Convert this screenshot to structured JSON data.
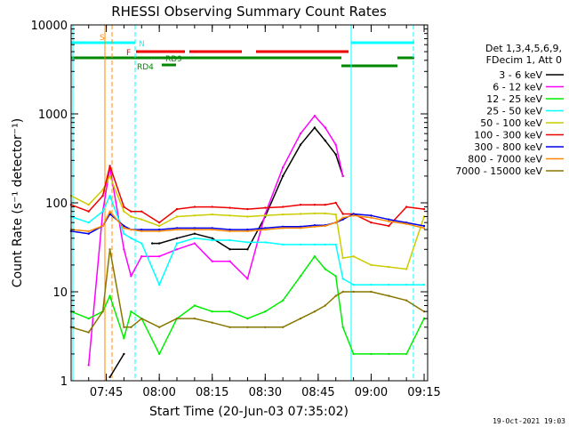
{
  "chart_data": {
    "type": "line",
    "title": "RHESSI Observing Summary Count Rates",
    "xlabel": "Start Time (20-Jun-03 07:35:02)",
    "ylabel": "Count Rate (s⁻¹ detector⁻¹)",
    "yscale": "log",
    "xlim": [
      "07:35:02",
      "09:16:00"
    ],
    "ylim": [
      1,
      10000
    ],
    "x_ticks": [
      "07:45",
      "08:00",
      "08:15",
      "08:30",
      "08:45",
      "09:00",
      "09:15"
    ],
    "y_ticks": [
      "1",
      "10",
      "100",
      "1000",
      "10000"
    ],
    "grid": false,
    "legend": {
      "placement": "right",
      "header": [
        "Det 1,3,4,5,6,9,",
        "FDecim 1, Att 0"
      ],
      "entries": [
        "3 - 6 keV",
        "6 - 12 keV",
        "12 - 25 keV",
        "25 - 50 keV",
        "50 - 100 keV",
        "100 - 300 keV",
        "300 - 800 keV",
        "800 - 7000 keV",
        "7000 - 15000 keV"
      ]
    },
    "series": [
      {
        "name": "3 - 6 keV",
        "color": "#000000",
        "x": [
          "07:35",
          "07:40",
          "07:44",
          "07:46",
          "07:50",
          "07:52",
          "07:55",
          "07:58",
          "08:00",
          "08:05",
          "08:10",
          "08:15",
          "08:20",
          "08:25",
          "08:30",
          "08:35",
          "08:40",
          "08:44",
          "08:47",
          "08:50",
          "08:52",
          "08:55",
          "08:56",
          "09:00",
          "09:10",
          "09:15"
        ],
        "y": [
          null,
          null,
          null,
          1.1,
          2,
          null,
          null,
          35,
          35,
          40,
          45,
          40,
          30,
          30,
          70,
          200,
          450,
          700,
          500,
          350,
          200,
          null,
          null,
          null,
          null,
          null
        ]
      },
      {
        "name": "6 - 12 keV",
        "color": "#ff00ff",
        "x": [
          "07:35",
          "07:40",
          "07:44",
          "07:46",
          "07:50",
          "07:52",
          "07:55",
          "08:00",
          "08:05",
          "08:10",
          "08:15",
          "08:20",
          "08:25",
          "08:30",
          "08:35",
          "08:40",
          "08:44",
          "08:47",
          "08:50",
          "08:52",
          "08:55",
          "09:00",
          "09:15"
        ],
        "y": [
          null,
          1.5,
          80,
          250,
          30,
          15,
          25,
          25,
          30,
          35,
          22,
          22,
          14,
          75,
          250,
          600,
          950,
          700,
          450,
          200,
          null,
          null,
          null
        ]
      },
      {
        "name": "12 - 25 keV",
        "color": "#00ee00",
        "x": [
          "07:35",
          "07:40",
          "07:44",
          "07:46",
          "07:50",
          "07:52",
          "07:55",
          "08:00",
          "08:05",
          "08:10",
          "08:15",
          "08:20",
          "08:25",
          "08:30",
          "08:35",
          "08:40",
          "08:44",
          "08:47",
          "08:50",
          "08:52",
          "08:55",
          "09:00",
          "09:05",
          "09:10",
          "09:15"
        ],
        "y": [
          6,
          5,
          6,
          9,
          3,
          6,
          5,
          2,
          5,
          7,
          6,
          6,
          5,
          6,
          8,
          15,
          25,
          18,
          15,
          4,
          2,
          2,
          2,
          2,
          5
        ]
      },
      {
        "name": "25 - 50 keV",
        "color": "#00ffff",
        "x": [
          "07:35",
          "07:40",
          "07:44",
          "07:46",
          "07:50",
          "07:52",
          "07:55",
          "08:00",
          "08:05",
          "08:10",
          "08:15",
          "08:20",
          "08:25",
          "08:30",
          "08:35",
          "08:40",
          "08:44",
          "08:47",
          "08:50",
          "08:52",
          "08:55",
          "09:00",
          "09:05",
          "09:10",
          "09:15"
        ],
        "y": [
          70,
          60,
          80,
          120,
          45,
          40,
          35,
          12,
          35,
          40,
          38,
          38,
          36,
          36,
          34,
          34,
          34,
          34,
          34,
          14,
          12,
          12,
          12,
          12,
          12
        ]
      },
      {
        "name": "50 - 100 keV",
        "color": "#cccc00",
        "x": [
          "07:35",
          "07:40",
          "07:44",
          "07:46",
          "07:50",
          "07:52",
          "07:55",
          "08:00",
          "08:05",
          "08:10",
          "08:15",
          "08:20",
          "08:25",
          "08:30",
          "08:35",
          "08:40",
          "08:44",
          "08:47",
          "08:50",
          "08:52",
          "08:55",
          "09:00",
          "09:05",
          "09:10",
          "09:15"
        ],
        "y": [
          120,
          95,
          140,
          200,
          80,
          70,
          65,
          55,
          70,
          72,
          74,
          72,
          70,
          72,
          74,
          75,
          76,
          76,
          74,
          24,
          25,
          20,
          19,
          18,
          70
        ]
      },
      {
        "name": "100 - 300 keV",
        "color": "#ee0000",
        "x": [
          "07:35",
          "07:40",
          "07:44",
          "07:46",
          "07:50",
          "07:52",
          "07:55",
          "08:00",
          "08:05",
          "08:10",
          "08:15",
          "08:20",
          "08:25",
          "08:30",
          "08:35",
          "08:40",
          "08:44",
          "08:47",
          "08:50",
          "08:52",
          "08:55",
          "09:00",
          "09:05",
          "09:10",
          "09:15"
        ],
        "y": [
          95,
          80,
          120,
          260,
          90,
          80,
          80,
          60,
          85,
          90,
          90,
          88,
          85,
          88,
          90,
          95,
          95,
          95,
          100,
          75,
          75,
          60,
          55,
          90,
          85
        ]
      },
      {
        "name": "300 - 800 keV",
        "color": "#0000ee",
        "x": [
          "07:35",
          "07:40",
          "07:44",
          "07:46",
          "07:50",
          "07:52",
          "07:55",
          "08:00",
          "08:05",
          "08:10",
          "08:15",
          "08:20",
          "08:25",
          "08:30",
          "08:35",
          "08:40",
          "08:44",
          "08:47",
          "08:50",
          "08:52",
          "08:55",
          "09:00",
          "09:05",
          "09:10",
          "09:15"
        ],
        "y": [
          48,
          45,
          55,
          75,
          55,
          50,
          50,
          50,
          52,
          52,
          52,
          50,
          50,
          52,
          54,
          54,
          56,
          56,
          60,
          65,
          75,
          72,
          65,
          60,
          55
        ]
      },
      {
        "name": "800 - 7000 keV",
        "color": "#ff8800",
        "x": [
          "07:35",
          "07:40",
          "07:44",
          "07:46",
          "07:50",
          "07:52",
          "07:55",
          "08:00",
          "08:05",
          "08:10",
          "08:15",
          "08:20",
          "08:25",
          "08:30",
          "08:35",
          "08:40",
          "08:44",
          "08:47",
          "08:50",
          "08:52",
          "08:55",
          "09:00",
          "09:05",
          "09:10",
          "09:15"
        ],
        "y": [
          50,
          48,
          55,
          80,
          52,
          50,
          48,
          48,
          50,
          50,
          50,
          48,
          48,
          50,
          52,
          52,
          54,
          55,
          60,
          68,
          72,
          68,
          62,
          58,
          52
        ]
      },
      {
        "name": "7000 - 15000 keV",
        "color": "#887700",
        "x": [
          "07:35",
          "07:40",
          "07:44",
          "07:46",
          "07:50",
          "07:52",
          "07:55",
          "08:00",
          "08:05",
          "08:10",
          "08:15",
          "08:20",
          "08:25",
          "08:30",
          "08:35",
          "08:40",
          "08:44",
          "08:47",
          "08:50",
          "08:52",
          "08:55",
          "09:00",
          "09:05",
          "09:10",
          "09:15"
        ],
        "y": [
          4,
          3.5,
          6,
          30,
          4,
          4,
          5,
          4,
          5,
          5,
          4.5,
          4,
          4,
          4,
          4,
          5,
          6,
          7,
          9,
          10,
          10,
          10,
          9,
          8,
          6
        ]
      }
    ],
    "annotations": {
      "S": {
        "label": "S",
        "color": "#ff8800"
      },
      "N": {
        "label": "N",
        "color": "#00ffff"
      },
      "F": {
        "label": "F",
        "color": "#ee0000"
      },
      "RD4": {
        "label": "RD4",
        "color": "#008800"
      },
      "RD9": {
        "label": "RD9",
        "color": "#008800"
      }
    },
    "footer_timestamp": "19-Oct-2021 19:03"
  }
}
